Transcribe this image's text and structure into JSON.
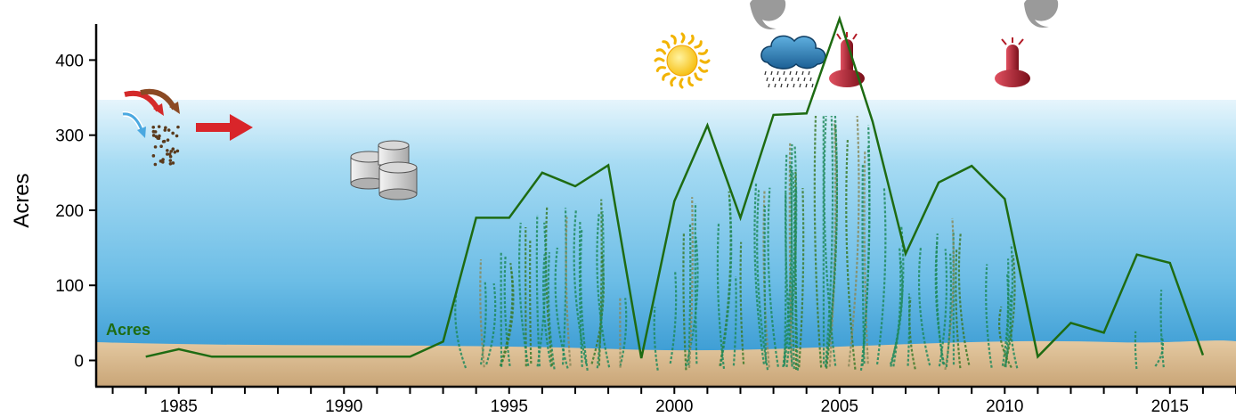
{
  "chart_data": {
    "type": "line",
    "title": "",
    "xlabel": "",
    "ylabel": "Acres",
    "xlim": [
      1982.5,
      2017
    ],
    "ylim": [
      -35,
      480
    ],
    "x_ticks": [
      1985,
      1990,
      1995,
      2000,
      2005,
      2010,
      2015
    ],
    "y_ticks": [
      0,
      100,
      200,
      300,
      400
    ],
    "grid": false,
    "series": [
      {
        "name": "Acres",
        "color": "#1e6b12",
        "x": [
          1984,
          1985,
          1986,
          1987,
          1988,
          1989,
          1990,
          1991,
          1992,
          1993,
          1994,
          1995,
          1996,
          1997,
          1998,
          1999,
          2000,
          2001,
          2002,
          2003,
          2004,
          2005,
          2006,
          2007,
          2008,
          2009,
          2010,
          2011,
          2012,
          2013,
          2014,
          2015,
          2016
        ],
        "values": [
          5,
          15,
          5,
          5,
          5,
          5,
          5,
          5,
          5,
          25,
          190,
          190,
          250,
          232,
          260,
          3,
          212,
          313,
          190,
          327,
          329,
          455,
          318,
          142,
          237,
          259,
          215,
          5,
          50,
          37,
          141,
          130,
          7
        ]
      }
    ]
  },
  "illustration": {
    "water_color": "#5fb6e2",
    "sediment_color": "#d9b98e",
    "plant_colors": [
      "#1f8a5c",
      "#3c7a2a",
      "#8a8a5a"
    ],
    "icons": [
      "nutrient-arrows-icon",
      "sediment-particles-icon",
      "red-arrow-icon",
      "storage-tanks-icon",
      "sun-icon",
      "rain-cloud-icon",
      "thermometer-icon",
      "smoke-cloud-icon"
    ]
  }
}
